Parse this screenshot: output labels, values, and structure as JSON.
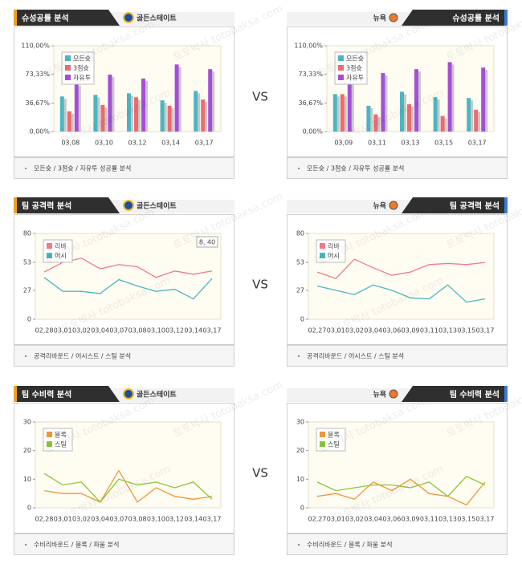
{
  "vs_labels": [
    "VS",
    "VS",
    "VS"
  ],
  "watermark": "토토박사 totobaksa.com",
  "chart_data": [
    {
      "type": "bar",
      "title": "슈성공률 분석",
      "team": "골든스테이트",
      "note": "모든슛 / 3점슛 / 자유투 성공률 분석",
      "legend": "upper left",
      "categories": [
        "03,08",
        "03,10",
        "03,12",
        "03,14",
        "03,17"
      ],
      "ylim": [
        0,
        110
      ],
      "yticks": [
        {
          "value": 0,
          "label": "0,00%"
        },
        {
          "value": 36.67,
          "label": "36,67%"
        },
        {
          "value": 73.33,
          "label": "73,33%"
        },
        {
          "value": 110,
          "label": "110,00%"
        }
      ],
      "series": [
        {
          "name": "모든슛",
          "color": "#4bb5c4",
          "values": [
            45,
            47,
            49,
            40,
            52
          ]
        },
        {
          "name": "3점슛",
          "color": "#ec6b70",
          "values": [
            26,
            34,
            44,
            33,
            41
          ]
        },
        {
          "name": "자유투",
          "color": "#a44fd6",
          "values": [
            62,
            73,
            68,
            86,
            80
          ]
        }
      ]
    },
    {
      "type": "bar",
      "title": "슈성공률 분석",
      "team": "뉴욕",
      "note": "모든슛 / 3점슛 / 자유투 성공률 분석",
      "legend": "upper left",
      "categories": [
        "03,09",
        "03,11",
        "03,13",
        "03,15",
        "03,17"
      ],
      "ylim": [
        0,
        110
      ],
      "yticks": [
        {
          "value": 0,
          "label": "0,00%"
        },
        {
          "value": 36.67,
          "label": "36,67%"
        },
        {
          "value": 73.33,
          "label": "73,33%"
        },
        {
          "value": 110,
          "label": "110,00%"
        }
      ],
      "series": [
        {
          "name": "모든슛",
          "color": "#4bb5c4",
          "values": [
            48,
            33,
            51,
            44,
            43
          ]
        },
        {
          "name": "3점슛",
          "color": "#ec6b70",
          "values": [
            48,
            22,
            35,
            20,
            28
          ]
        },
        {
          "name": "자유투",
          "color": "#a44fd6",
          "values": [
            68,
            75,
            80,
            89,
            82
          ]
        }
      ]
    },
    {
      "type": "line",
      "title": "팀 공격력 분석",
      "team": "골든스테이트",
      "note": "공격리바운드 / 어시스트 / 스틸 분석",
      "legend": "upper left",
      "annotation": "8, 40",
      "categories": [
        "02,28",
        "03,01",
        "03,02",
        "03,04",
        "03,07",
        "03,08",
        "03,10",
        "03,12",
        "03,14",
        "03,17"
      ],
      "ylim": [
        0,
        80
      ],
      "yticks": [
        0,
        27,
        53,
        80
      ],
      "series": [
        {
          "name": "리바",
          "color": "#f07a85",
          "values": [
            44,
            53,
            57,
            47,
            51,
            49,
            39,
            45,
            42,
            45
          ]
        },
        {
          "name": "어시",
          "color": "#4bb5c4",
          "values": [
            39,
            26,
            26,
            24,
            37,
            31,
            26,
            28,
            19,
            38
          ]
        }
      ]
    },
    {
      "type": "line",
      "title": "팀 공격력 분석",
      "team": "뉴욕",
      "note": "공격리바운드 / 어시스트 / 스틸 분석",
      "legend": "upper left",
      "categories": [
        "02,27",
        "03,01",
        "03,02",
        "03,04",
        "03,06",
        "03,09",
        "03,11",
        "03,13",
        "03,15",
        "03,17"
      ],
      "ylim": [
        0,
        80
      ],
      "yticks": [
        0,
        27,
        53,
        80
      ],
      "series": [
        {
          "name": "리바",
          "color": "#f07a85",
          "values": [
            44,
            38,
            56,
            48,
            41,
            44,
            51,
            52,
            51,
            53
          ]
        },
        {
          "name": "어시",
          "color": "#4bb5c4",
          "values": [
            31,
            27,
            23,
            32,
            27,
            20,
            19,
            32,
            16,
            19
          ]
        }
      ]
    },
    {
      "type": "line",
      "title": "팀 수비력 분석",
      "team": "골든스테이트",
      "note": "수비리바운드 / 블록 / 파울 분석",
      "legend": "upper left",
      "categories": [
        "02,28",
        "03,01",
        "03,02",
        "03,04",
        "03,07",
        "03,08",
        "03,10",
        "03,12",
        "03,14",
        "03,17"
      ],
      "ylim": [
        0,
        30
      ],
      "yticks": [
        0,
        10,
        20,
        30
      ],
      "series": [
        {
          "name": "블록",
          "color": "#f0963a",
          "values": [
            6,
            5,
            5,
            2,
            13,
            2,
            7,
            4,
            3,
            4
          ]
        },
        {
          "name": "스틸",
          "color": "#8cc43c",
          "values": [
            12,
            8,
            9,
            2,
            10,
            8,
            9,
            7,
            9,
            3
          ]
        }
      ]
    },
    {
      "type": "line",
      "title": "팀 수비력 분석",
      "team": "뉴욕",
      "note": "수비리바운드 / 블록 / 파울 분석",
      "legend": "upper left",
      "categories": [
        "02,27",
        "03,01",
        "03,02",
        "03,04",
        "03,06",
        "03,09",
        "03,11",
        "03,13",
        "03,15",
        "03,17"
      ],
      "ylim": [
        0,
        30
      ],
      "yticks": [
        0,
        10,
        20,
        30
      ],
      "series": [
        {
          "name": "블록",
          "color": "#f0963a",
          "values": [
            4,
            5,
            3,
            9,
            6,
            10,
            5,
            4,
            1,
            9
          ]
        },
        {
          "name": "스틸",
          "color": "#8cc43c",
          "values": [
            9,
            6,
            7,
            8,
            8,
            7,
            9,
            4,
            11,
            8
          ]
        }
      ]
    }
  ]
}
